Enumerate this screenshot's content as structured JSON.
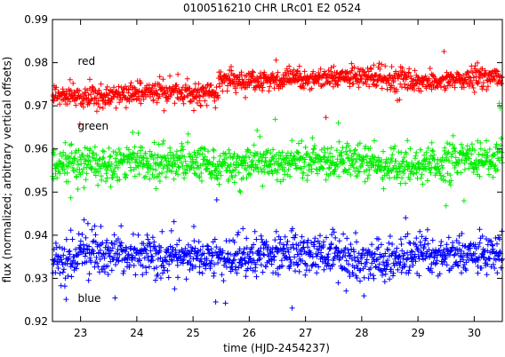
{
  "chart_data": {
    "type": "scatter",
    "title": "0100516210 CHR LRc01 E2 0524",
    "xlabel": "time (HJD-2454237)",
    "ylabel": "flux (normalized; arbitrary vertical offsets)",
    "xlim": [
      22.5,
      30.5
    ],
    "ylim": [
      0.92,
      0.99
    ],
    "xticks": [
      23,
      24,
      25,
      26,
      27,
      28,
      29,
      30
    ],
    "yticks": [
      0.92,
      0.93,
      0.94,
      0.95,
      0.96,
      0.97,
      0.98,
      0.99
    ],
    "xtick_labels": [
      "23",
      "24",
      "25",
      "26",
      "27",
      "28",
      "29",
      "30"
    ],
    "ytick_labels": [
      "0.92",
      "0.93",
      "0.94",
      "0.95",
      "0.96",
      "0.97",
      "0.98",
      "0.99"
    ],
    "grid": false,
    "marker": "+",
    "series": [
      {
        "name": "red",
        "color": "#ff0000",
        "label_at": [
          22.95,
          0.9795
        ],
        "segments": [
          {
            "x_start": 22.5,
            "x_end": 25.45,
            "level": 0.9727,
            "scatter": 0.0012
          },
          {
            "x_start": 25.45,
            "x_end": 30.5,
            "level": 0.9762,
            "scatter": 0.0012
          }
        ],
        "points_per_day": 140
      },
      {
        "name": "green",
        "color": "#00ee00",
        "label_at": [
          22.95,
          0.9645
        ],
        "segments": [
          {
            "x_start": 22.5,
            "x_end": 30.5,
            "level": 0.9568,
            "scatter": 0.002
          }
        ],
        "points_per_day": 140
      },
      {
        "name": "blue",
        "color": "#0000ff",
        "label_at": [
          22.95,
          0.9245
        ],
        "segments": [
          {
            "x_start": 22.5,
            "x_end": 30.5,
            "level": 0.9352,
            "scatter": 0.0023
          }
        ],
        "points_per_day": 140
      }
    ]
  }
}
